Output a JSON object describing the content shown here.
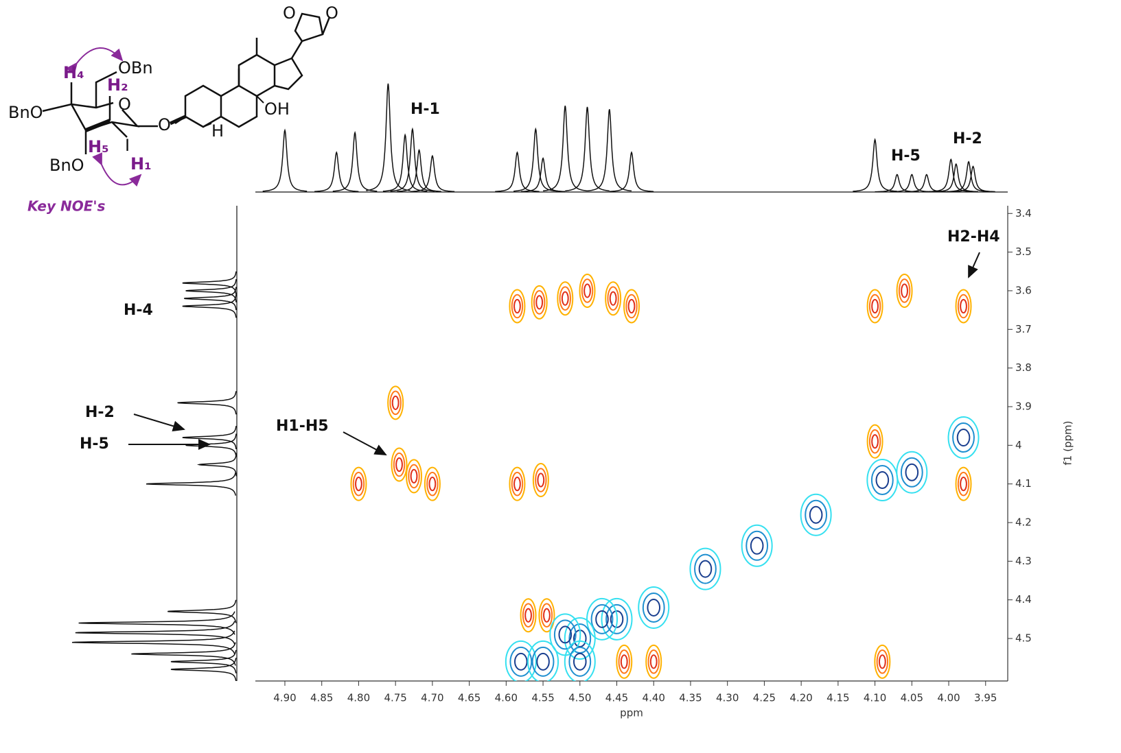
{
  "chart_data": {
    "type": "contour",
    "x_label": "ppm",
    "y_label": "f1 (ppm)",
    "xlim": [
      4.94,
      3.92
    ],
    "ylim": [
      3.38,
      4.61
    ],
    "xticks": [
      {
        "value": 4.9,
        "label": "4.90"
      },
      {
        "value": 4.85,
        "label": "4.85"
      },
      {
        "value": 4.8,
        "label": "4.80"
      },
      {
        "value": 4.75,
        "label": "4.75"
      },
      {
        "value": 4.7,
        "label": "4.70"
      },
      {
        "value": 4.65,
        "label": "4.65"
      },
      {
        "value": 4.6,
        "label": "4.60"
      },
      {
        "value": 4.55,
        "label": "4.55"
      },
      {
        "value": 4.5,
        "label": "4.50"
      },
      {
        "value": 4.45,
        "label": "4.45"
      },
      {
        "value": 4.4,
        "label": "4.40"
      },
      {
        "value": 4.35,
        "label": "4.35"
      },
      {
        "value": 4.3,
        "label": "4.30"
      },
      {
        "value": 4.25,
        "label": "4.25"
      },
      {
        "value": 4.2,
        "label": "4.20"
      },
      {
        "value": 4.15,
        "label": "4.15"
      },
      {
        "value": 4.1,
        "label": "4.10"
      },
      {
        "value": 4.05,
        "label": "4.05"
      },
      {
        "value": 4.0,
        "label": "4.00"
      },
      {
        "value": 3.95,
        "label": "3.95"
      }
    ],
    "yticks": [
      3.4,
      3.5,
      3.6,
      3.7,
      3.8,
      3.9,
      4.0,
      4.1,
      4.2,
      4.3,
      4.4,
      4.5
    ],
    "series": [
      {
        "colors": [
          "#ffb200",
          "#ff7a1a",
          "#e0301a"
        ],
        "x": [
          4.585,
          4.555,
          4.52,
          4.49,
          4.455,
          4.43,
          4.1,
          4.06,
          3.98,
          4.75,
          4.745,
          4.725,
          4.8,
          4.7,
          4.585,
          4.553,
          4.1,
          3.98,
          4.57,
          4.545,
          4.44,
          4.4,
          4.09
        ],
        "values": [
          3.64,
          3.63,
          3.62,
          3.6,
          3.62,
          3.64,
          3.64,
          3.6,
          3.64,
          3.89,
          4.05,
          4.08,
          4.1,
          4.1,
          4.1,
          4.09,
          3.99,
          4.1,
          4.44,
          4.44,
          4.56,
          4.56,
          4.56
        ]
      },
      {
        "colors": [
          "#35e0f0",
          "#1f8fd0",
          "#1a3f8f"
        ],
        "x": [
          3.98,
          4.09,
          4.05,
          4.18,
          4.26,
          4.33,
          4.4,
          4.45,
          4.47,
          4.5,
          4.52,
          4.58,
          4.55,
          4.5
        ],
        "values": [
          3.98,
          4.09,
          4.07,
          4.18,
          4.26,
          4.32,
          4.42,
          4.45,
          4.45,
          4.5,
          4.49,
          4.56,
          4.56,
          4.56
        ]
      }
    ],
    "top_spectrum": {
      "x": [
        4.9,
        4.83,
        4.805,
        4.76,
        4.737,
        4.727,
        4.718,
        4.7,
        4.585,
        4.56,
        4.55,
        4.52,
        4.49,
        4.46,
        4.43,
        4.1,
        4.07,
        4.05,
        4.03,
        3.997,
        3.99,
        3.973,
        3.967
      ],
      "values": [
        53,
        34,
        51,
        93,
        49,
        54,
        36,
        31,
        34,
        54,
        29,
        74,
        73,
        71,
        34,
        45,
        15,
        15,
        15,
        28,
        24,
        26,
        22
      ]
    },
    "left_spectrum": {
      "y": [
        3.58,
        3.6,
        3.62,
        3.64,
        3.89,
        3.98,
        4.0,
        4.05,
        4.1,
        4.43,
        4.46,
        4.485,
        4.51,
        4.54,
        4.56,
        4.58
      ],
      "values": [
        33,
        31,
        32,
        33,
        36,
        33,
        31,
        23,
        55,
        42,
        96,
        98,
        100,
        64,
        40,
        40
      ]
    },
    "annotations": [
      "H-1",
      "H-5",
      "H-2",
      "H-4",
      "H-2",
      "H-5",
      "H1-H5",
      "H2-H4"
    ]
  },
  "structure": {
    "labels": [
      "OBn",
      "BnO",
      "BnO",
      "O",
      "O",
      "I",
      "H₄",
      "H₂",
      "H₅",
      "H₁",
      "OH",
      "H",
      "O",
      "O",
      "Key NOE's"
    ]
  }
}
